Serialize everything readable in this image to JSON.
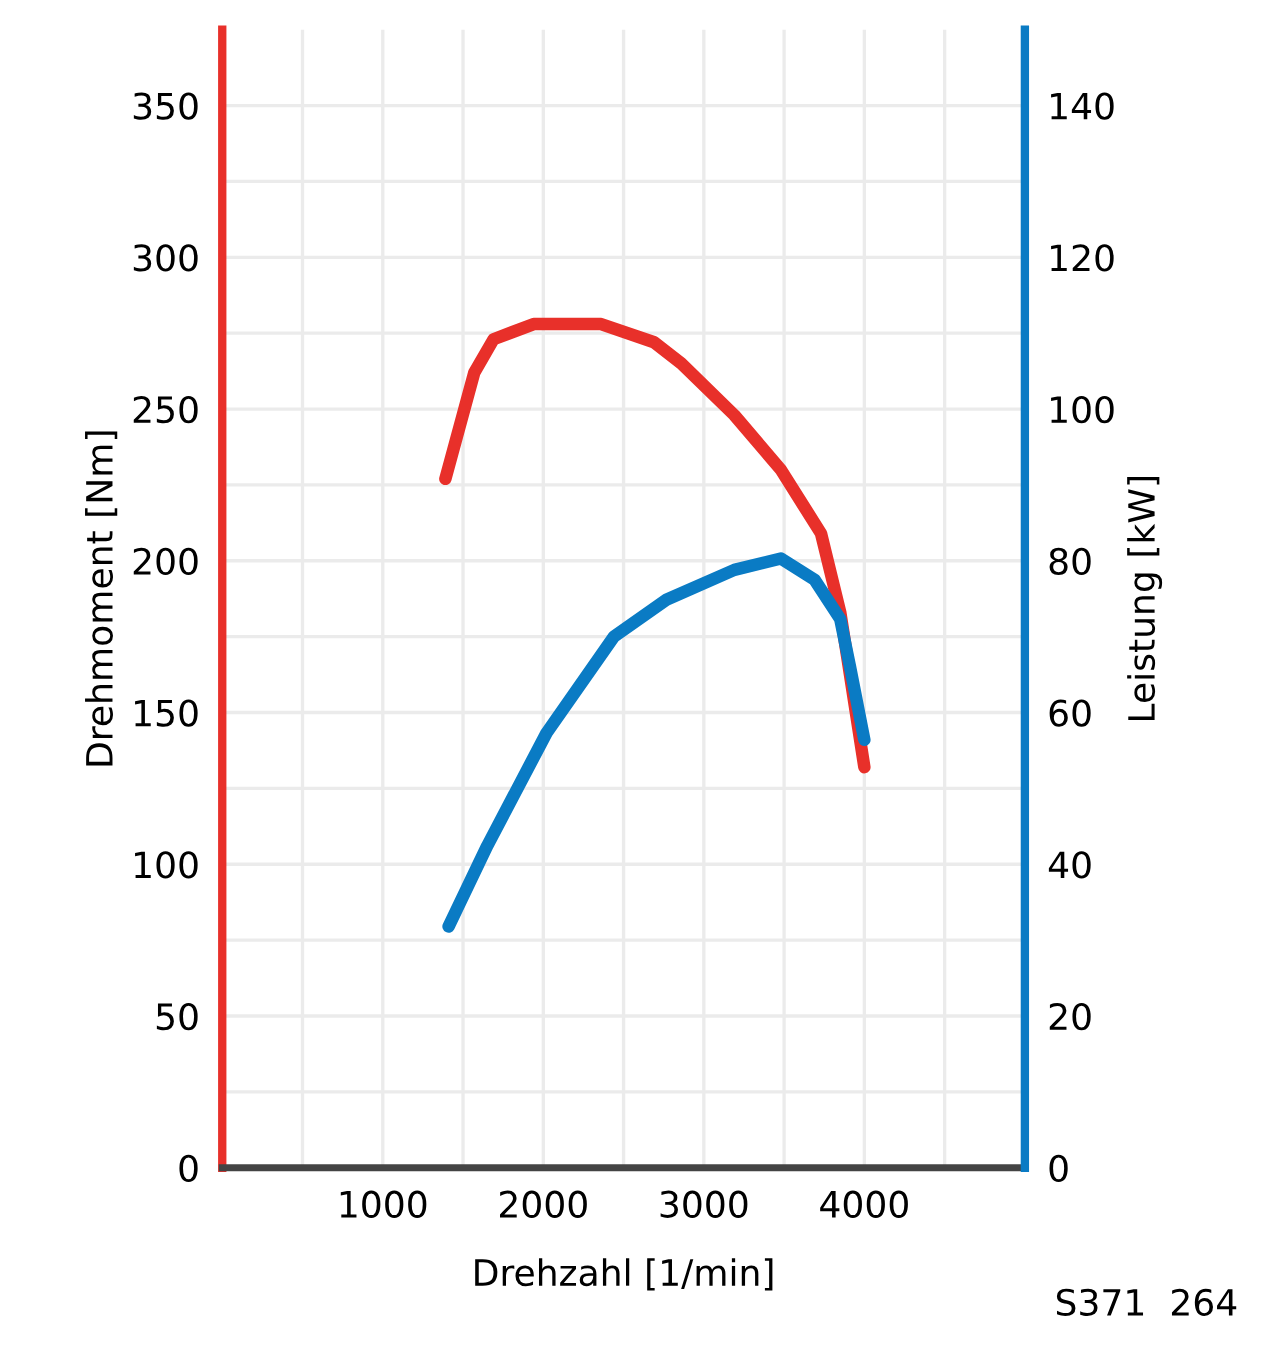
{
  "chart_data": {
    "type": "line",
    "xlabel": "Drehzahl [1/min]",
    "ylabel": "Drehmoment [Nm]",
    "y2label": "Leistung [kW]",
    "xlim": [
      0,
      5000
    ],
    "xticks": [
      {
        "value": 500,
        "label": null
      },
      1000,
      {
        "value": 1500,
        "label": null
      },
      2000,
      {
        "value": 2500,
        "label": null
      },
      3000,
      {
        "value": 3500,
        "label": null
      },
      4000,
      {
        "value": 4500,
        "label": null
      }
    ],
    "ylim": [
      0,
      375
    ],
    "yticks": [
      0,
      {
        "value": 25,
        "label": null
      },
      50,
      {
        "value": 75,
        "label": null
      },
      100,
      {
        "value": 125,
        "label": null
      },
      150,
      {
        "value": 175,
        "label": null
      },
      200,
      {
        "value": 225,
        "label": null
      },
      250,
      {
        "value": 275,
        "label": null
      },
      300,
      {
        "value": 325,
        "label": null
      },
      350
    ],
    "y2lim": [
      0,
      150
    ],
    "y2ticks": [
      0,
      20,
      40,
      60,
      80,
      100,
      120,
      140
    ],
    "grid": true,
    "marker": "none",
    "line_style": "solid",
    "annotations": [
      "S371  264"
    ],
    "series": [
      {
        "color": "#e8302a",
        "x": [
          1390,
          1570,
          1690,
          1940,
          2360,
          2690,
          2860,
          3190,
          3480,
          3730,
          3850,
          4000
        ],
        "values": [
          227,
          262,
          273,
          278,
          278,
          272,
          265,
          248,
          230,
          209,
          183,
          132
        ]
      },
      {
        "color": "#0a7bc4",
        "axis": "y2",
        "x": [
          1410,
          1650,
          2020,
          2440,
          2770,
          3190,
          3480,
          3690,
          3850,
          3910,
          4000
        ],
        "values": [
          31.8,
          42.4,
          57.3,
          70.0,
          74.9,
          78.8,
          80.3,
          77.5,
          72.3,
          66.1,
          56.4
        ]
      }
    ]
  }
}
